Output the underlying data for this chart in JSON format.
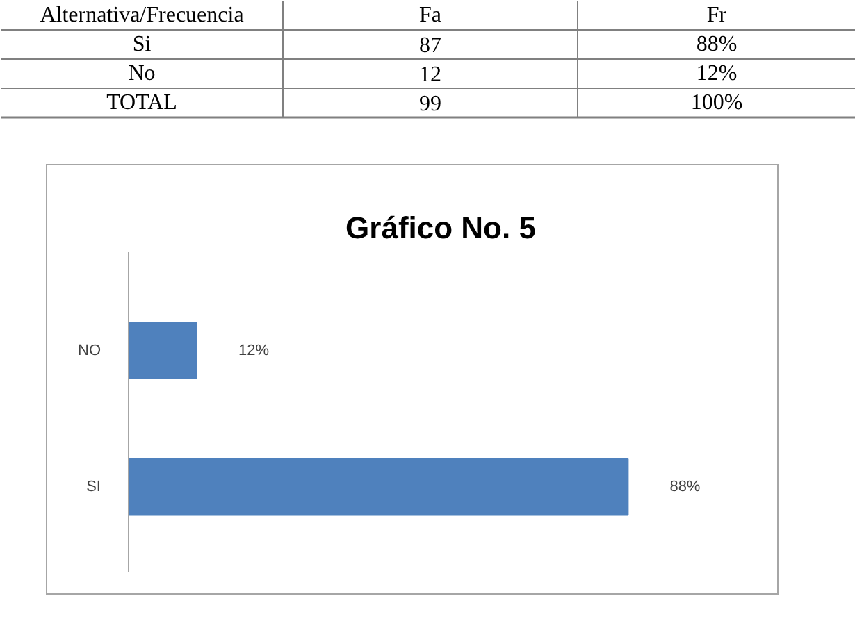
{
  "chart_data": [
    {
      "type": "other",
      "annotations": [
        "Alternativa/Frecuencia",
        "Fa",
        "Fr",
        "Si",
        "87",
        "88%",
        "No",
        "12",
        "12%",
        "TOTAL",
        "99",
        "100%"
      ]
    },
    {
      "type": "bar",
      "title": "Gráfico No. 5",
      "orientation": "horizontal",
      "categories": [
        "NO",
        "SI"
      ],
      "values": [
        12,
        88
      ],
      "color": "#4f81bd",
      "value_labels": [
        "12%",
        "88%"
      ]
    }
  ]
}
